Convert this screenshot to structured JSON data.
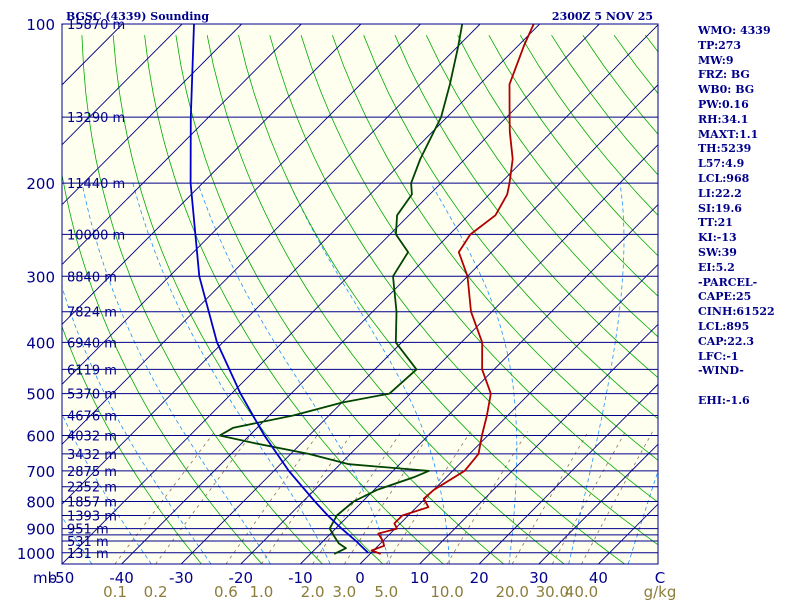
{
  "header": {
    "title": "BGSC (4339) Sounding",
    "datetime": "2300Z  5 NOV 25"
  },
  "colors": {
    "background": "#fffff0",
    "isobar": "#00008b",
    "isotherm": "#000080",
    "dry_adiabat": "#00aa00",
    "moist_adiabat": "#1e90ff",
    "mixing_ratio": "#8b7355",
    "temperature": "#b00000",
    "dewpoint": "#004400",
    "parcel": "#0000cc",
    "text": "#00008b",
    "mr_label": "#8b7d3a"
  },
  "chart_data": {
    "type": "skew-t",
    "title": "BGSC (4339) Sounding",
    "valid_time": "2300Z  5 NOV 25",
    "pressure_axis_label": "mb",
    "pressure_ticks": [
      100,
      200,
      300,
      400,
      500,
      600,
      700,
      800,
      900,
      1000
    ],
    "temperature_axis_label": "C",
    "temperature_ticks": [
      -50,
      -40,
      -30,
      -20,
      -10,
      0,
      10,
      20,
      30,
      40
    ],
    "temperature_range": [
      -50,
      50
    ],
    "pressure_range": [
      1050,
      100
    ],
    "mixing_ratio_label": "g/kg",
    "mixing_ratio_ticks": [
      "0.1",
      "0.2",
      "0.6",
      "1.0",
      "2.0",
      "3.0",
      "5.0",
      "10.0",
      "20.0",
      "30.0",
      "40.0"
    ],
    "mixing_ratio_values": [
      0.1,
      0.2,
      0.6,
      1.0,
      2.0,
      3.0,
      5.0,
      10.0,
      20.0,
      30.0,
      40.0
    ],
    "isobar_levels": [
      100,
      150,
      200,
      250,
      300,
      350,
      400,
      450,
      500,
      550,
      600,
      650,
      700,
      750,
      800,
      850,
      900,
      925,
      950,
      1000
    ],
    "height_labels": [
      {
        "p": 100,
        "text": "15870 m"
      },
      {
        "p": 150,
        "text": "13290 m"
      },
      {
        "p": 200,
        "text": "11440 m"
      },
      {
        "p": 250,
        "text": "10000 m"
      },
      {
        "p": 300,
        "text": "8840 m"
      },
      {
        "p": 350,
        "text": "7824 m"
      },
      {
        "p": 400,
        "text": "6940 m"
      },
      {
        "p": 450,
        "text": "6119 m"
      },
      {
        "p": 500,
        "text": "5370 m"
      },
      {
        "p": 550,
        "text": "4676 m"
      },
      {
        "p": 600,
        "text": "4032 m"
      },
      {
        "p": 650,
        "text": "3432 m"
      },
      {
        "p": 700,
        "text": "2875 m"
      },
      {
        "p": 750,
        "text": "2352 m"
      },
      {
        "p": 800,
        "text": "1857 m"
      },
      {
        "p": 850,
        "text": "1393 m"
      },
      {
        "p": 900,
        "text": "951 m"
      },
      {
        "p": 950,
        "text": "531 m"
      },
      {
        "p": 1000,
        "text": "131 m"
      }
    ],
    "series": [
      {
        "name": "Temperature",
        "points": [
          [
            1005,
            1.8
          ],
          [
            990,
            -0.3
          ],
          [
            970,
            1.0
          ],
          [
            950,
            0.0
          ],
          [
            920,
            -2.0
          ],
          [
            900,
            0.3
          ],
          [
            880,
            -1.0
          ],
          [
            850,
            -1.0
          ],
          [
            820,
            2.0
          ],
          [
            790,
            -0.2
          ],
          [
            760,
            0.0
          ],
          [
            700,
            2.0
          ],
          [
            650,
            1.5
          ],
          [
            600,
            -1.0
          ],
          [
            550,
            -3.5
          ],
          [
            500,
            -6.5
          ],
          [
            450,
            -12.0
          ],
          [
            400,
            -16.5
          ],
          [
            350,
            -23.5
          ],
          [
            300,
            -30.0
          ],
          [
            270,
            -35.5
          ],
          [
            250,
            -36.5
          ],
          [
            230,
            -35.5
          ],
          [
            210,
            -37.0
          ],
          [
            200,
            -38.5
          ],
          [
            180,
            -42.0
          ],
          [
            160,
            -47.0
          ],
          [
            150,
            -49.5
          ],
          [
            130,
            -55.0
          ],
          [
            110,
            -59.0
          ],
          [
            100,
            -61.0
          ]
        ]
      },
      {
        "name": "Dewpoint",
        "points": [
          [
            1005,
            -6.0
          ],
          [
            980,
            -5.0
          ],
          [
            960,
            -7.0
          ],
          [
            930,
            -9.0
          ],
          [
            900,
            -11.0
          ],
          [
            850,
            -12.0
          ],
          [
            800,
            -11.5
          ],
          [
            760,
            -9.5
          ],
          [
            720,
            -5.5
          ],
          [
            700,
            -4.0
          ],
          [
            680,
            -18.5
          ],
          [
            650,
            -27.0
          ],
          [
            620,
            -38.0
          ],
          [
            600,
            -45.0
          ],
          [
            580,
            -44.0
          ],
          [
            550,
            -36.0
          ],
          [
            520,
            -30.0
          ],
          [
            500,
            -23.5
          ],
          [
            450,
            -23.0
          ],
          [
            400,
            -31.0
          ],
          [
            350,
            -36.0
          ],
          [
            300,
            -42.5
          ],
          [
            270,
            -44.0
          ],
          [
            250,
            -49.0
          ],
          [
            230,
            -52.0
          ],
          [
            210,
            -53.0
          ],
          [
            200,
            -55.0
          ],
          [
            180,
            -57.5
          ],
          [
            150,
            -61.0
          ],
          [
            130,
            -65.0
          ],
          [
            110,
            -70.0
          ],
          [
            100,
            -73.0
          ]
        ]
      },
      {
        "name": "Parcel",
        "points": [
          [
            1000,
            -0.5
          ],
          [
            950,
            -4.5
          ],
          [
            900,
            -9.0
          ],
          [
            850,
            -13.5
          ],
          [
            800,
            -18.0
          ],
          [
            700,
            -27.5
          ],
          [
            600,
            -37.5
          ],
          [
            500,
            -48.5
          ],
          [
            400,
            -61.0
          ],
          [
            300,
            -75.0
          ],
          [
            200,
            -92.0
          ],
          [
            150,
            -103.0
          ],
          [
            100,
            -118.0
          ]
        ]
      }
    ]
  },
  "side_panel": [
    "WMO: 4339",
    "TP:273",
    "MW:9",
    "FRZ: BG",
    "WB0: BG",
    "PW:0.16",
    "RH:34.1",
    "MAXT:1.1",
    "TH:5239",
    "L57:4.9",
    "LCL:968",
    "LI:22.2",
    "SI:19.6",
    "TT:21",
    "KI:-13",
    "SW:39",
    "EI:5.2",
    "-PARCEL-",
    "CAPE:25",
    "CINH:61522",
    "LCL:895",
    "CAP:22.3",
    "LFC:-1",
    "-WIND-",
    "",
    "EHI:-1.6"
  ]
}
